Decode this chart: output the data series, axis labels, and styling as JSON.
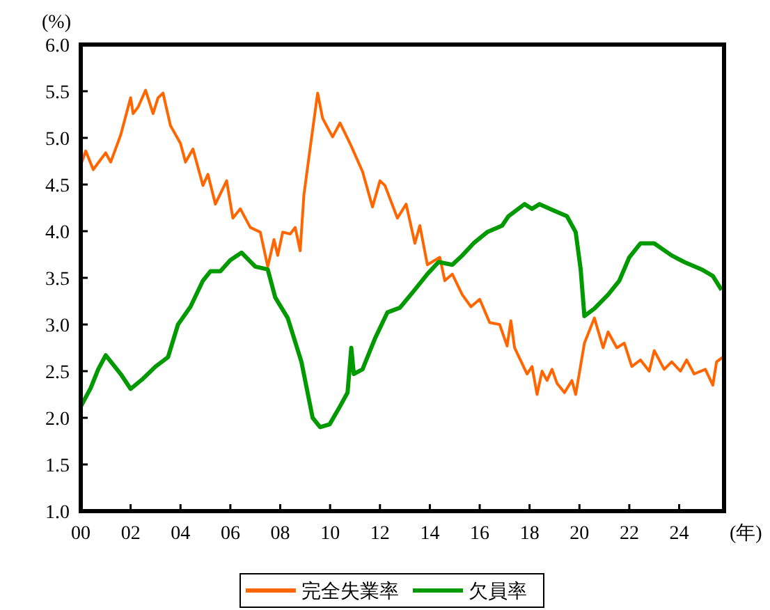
{
  "chart_data": {
    "type": "line",
    "ylabel": "(%)",
    "xlabel": "(年)",
    "xlim": [
      2000,
      2025.8
    ],
    "ylim": [
      1,
      6
    ],
    "xticks": [
      {
        "value": 2000,
        "label": "00"
      },
      {
        "value": 2002,
        "label": "02"
      },
      {
        "value": 2004,
        "label": "04"
      },
      {
        "value": 2006,
        "label": "06"
      },
      {
        "value": 2008,
        "label": "08"
      },
      {
        "value": 2010,
        "label": "10"
      },
      {
        "value": 2012,
        "label": "12"
      },
      {
        "value": 2014,
        "label": "14"
      },
      {
        "value": 2016,
        "label": "16"
      },
      {
        "value": 2018,
        "label": "18"
      },
      {
        "value": 2020,
        "label": "20"
      },
      {
        "value": 2022,
        "label": "22"
      },
      {
        "value": 2024,
        "label": "24"
      }
    ],
    "yticks": [
      {
        "value": 1,
        "label": "1.0"
      },
      {
        "value": 1.5,
        "label": "1.5"
      },
      {
        "value": 2,
        "label": "2.0"
      },
      {
        "value": 2.5,
        "label": "2.5"
      },
      {
        "value": 3,
        "label": "3.0"
      },
      {
        "value": 3.5,
        "label": "3.5"
      },
      {
        "value": 4,
        "label": "4.0"
      },
      {
        "value": 4.5,
        "label": "4.5"
      },
      {
        "value": 5,
        "label": "5.0"
      },
      {
        "value": 5.5,
        "label": "5.5"
      },
      {
        "value": 6,
        "label": "6.0"
      }
    ],
    "grid": false,
    "legend": "bottom",
    "marker": "none",
    "line_style": "solid",
    "series": [
      {
        "name": "完全失業率",
        "color": "#ff6600",
        "x": [
          2000.0,
          2000.2,
          2000.5,
          2001.0,
          2001.2,
          2001.6,
          2002.0,
          2002.1,
          2002.3,
          2002.6,
          2002.9,
          2003.1,
          2003.3,
          2003.6,
          2004.0,
          2004.2,
          2004.5,
          2004.9,
          2005.1,
          2005.4,
          2005.85,
          2006.1,
          2006.4,
          2006.8,
          2007.2,
          2007.5,
          2007.75,
          2007.9,
          2008.1,
          2008.4,
          2008.6,
          2008.8,
          2008.95,
          2009.2,
          2009.5,
          2009.7,
          2010.1,
          2010.4,
          2010.8,
          2011.3,
          2011.7,
          2012.0,
          2012.2,
          2012.7,
          2013.05,
          2013.4,
          2013.6,
          2013.9,
          2014.4,
          2014.6,
          2014.9,
          2015.3,
          2015.65,
          2016.0,
          2016.4,
          2016.8,
          2017.1,
          2017.25,
          2017.4,
          2017.9,
          2018.1,
          2018.3,
          2018.5,
          2018.7,
          2018.9,
          2019.1,
          2019.4,
          2019.7,
          2019.85,
          2020.2,
          2020.6,
          2020.95,
          2021.15,
          2021.5,
          2021.8,
          2022.1,
          2022.45,
          2022.8,
          2023.0,
          2023.4,
          2023.7,
          2024.05,
          2024.3,
          2024.6,
          2025.05,
          2025.35,
          2025.5,
          2025.75
        ],
        "values": [
          4.71,
          4.86,
          4.66,
          4.84,
          4.74,
          5.03,
          5.43,
          5.26,
          5.33,
          5.51,
          5.26,
          5.43,
          5.48,
          5.13,
          4.94,
          4.74,
          4.88,
          4.49,
          4.61,
          4.29,
          4.54,
          4.14,
          4.24,
          4.04,
          3.99,
          3.62,
          3.91,
          3.74,
          3.99,
          3.97,
          4.04,
          3.79,
          4.39,
          4.89,
          5.48,
          5.21,
          5.01,
          5.16,
          4.94,
          4.64,
          4.26,
          4.54,
          4.49,
          4.14,
          4.29,
          3.87,
          4.06,
          3.64,
          3.72,
          3.47,
          3.54,
          3.32,
          3.19,
          3.27,
          3.02,
          3.0,
          2.77,
          3.04,
          2.75,
          2.47,
          2.55,
          2.25,
          2.5,
          2.4,
          2.52,
          2.37,
          2.27,
          2.4,
          2.25,
          2.8,
          3.07,
          2.75,
          2.92,
          2.75,
          2.8,
          2.55,
          2.62,
          2.5,
          2.72,
          2.52,
          2.6,
          2.5,
          2.62,
          2.47,
          2.52,
          2.35,
          2.6,
          2.65
        ]
      },
      {
        "name": "欠員率",
        "color": "#009900",
        "x": [
          2000.0,
          2000.4,
          2000.7,
          2001.0,
          2001.6,
          2002.0,
          2002.5,
          2003.0,
          2003.5,
          2003.9,
          2004.4,
          2004.9,
          2005.2,
          2005.6,
          2006.0,
          2006.45,
          2007.0,
          2007.5,
          2007.8,
          2008.3,
          2008.85,
          2009.3,
          2009.6,
          2009.98,
          2010.35,
          2010.7,
          2010.85,
          2010.95,
          2011.3,
          2011.8,
          2012.3,
          2012.8,
          2013.3,
          2013.9,
          2014.35,
          2014.9,
          2015.3,
          2015.75,
          2016.3,
          2016.9,
          2017.15,
          2017.8,
          2018.1,
          2018.4,
          2018.9,
          2019.5,
          2019.85,
          2020.05,
          2020.2,
          2020.6,
          2021.15,
          2021.6,
          2022.0,
          2022.45,
          2023.0,
          2023.7,
          2024.2,
          2024.9,
          2025.35,
          2025.7
        ],
        "values": [
          2.12,
          2.32,
          2.52,
          2.67,
          2.47,
          2.31,
          2.42,
          2.55,
          2.65,
          3.0,
          3.19,
          3.47,
          3.57,
          3.57,
          3.69,
          3.77,
          3.62,
          3.59,
          3.29,
          3.07,
          2.6,
          2.0,
          1.9,
          1.93,
          2.1,
          2.27,
          2.75,
          2.47,
          2.52,
          2.85,
          3.13,
          3.18,
          3.34,
          3.54,
          3.67,
          3.64,
          3.74,
          3.87,
          3.99,
          4.06,
          4.16,
          4.29,
          4.24,
          4.29,
          4.23,
          4.16,
          3.99,
          3.59,
          3.09,
          3.17,
          3.32,
          3.47,
          3.72,
          3.87,
          3.87,
          3.74,
          3.67,
          3.59,
          3.52,
          3.37
        ]
      }
    ]
  }
}
